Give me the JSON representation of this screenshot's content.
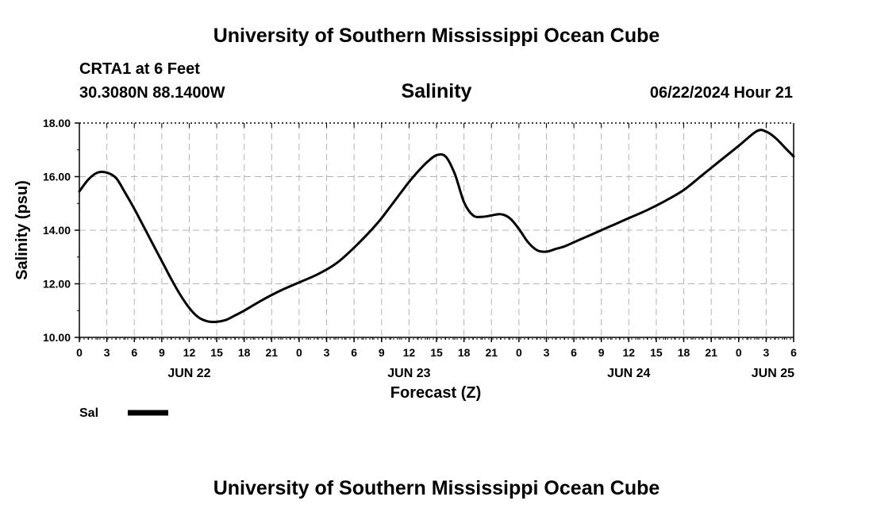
{
  "header": {
    "title": "University of Southern Mississippi Ocean Cube",
    "station": "CRTA1 at 6 Feet",
    "coordinates": "30.3080N  88.1400W",
    "variable": "Salinity",
    "timestamp": "06/22/2024 Hour 21"
  },
  "footer": {
    "title": "University of Southern Mississippi Ocean Cube"
  },
  "chart_data": {
    "type": "line",
    "title": "Salinity",
    "xlabel": "Forecast (Z)",
    "ylabel": "Salinity (psu)",
    "ylim": [
      10,
      18
    ],
    "xlim": [
      0,
      78
    ],
    "y_ticks": [
      "10.00",
      "12.00",
      "14.00",
      "16.00",
      "18.00"
    ],
    "y_tick_values": [
      10,
      12,
      14,
      16,
      18
    ],
    "x_ticks": [
      0,
      3,
      6,
      9,
      12,
      15,
      18,
      21,
      24,
      27,
      30,
      33,
      36,
      39,
      42,
      45,
      48,
      51,
      54,
      57,
      60,
      63,
      66,
      69,
      72,
      75,
      78
    ],
    "x_tick_labels": [
      "0",
      "3",
      "6",
      "9",
      "12",
      "15",
      "18",
      "21",
      "0",
      "3",
      "6",
      "9",
      "12",
      "15",
      "18",
      "21",
      "0",
      "3",
      "6",
      "9",
      "12",
      "15",
      "18",
      "21",
      "0",
      "3",
      "6"
    ],
    "date_labels": [
      {
        "label": "JUN 22",
        "at": 12
      },
      {
        "label": "JUN 23",
        "at": 36
      },
      {
        "label": "JUN 24",
        "at": 60
      },
      {
        "label": "JUN 25",
        "at": 78
      }
    ],
    "grid": true,
    "series": [
      {
        "name": "Sal",
        "x": [
          0,
          1,
          2,
          3,
          4,
          5,
          6,
          7,
          8,
          9,
          10,
          11,
          12,
          13,
          14,
          15,
          16,
          17,
          18,
          20,
          22,
          24,
          26,
          28,
          30,
          32,
          33,
          34,
          35,
          36,
          37,
          38,
          39,
          40,
          41,
          42,
          43,
          44,
          45,
          46,
          47,
          48,
          49,
          50,
          51,
          52,
          53,
          54,
          55,
          56,
          57,
          58,
          59,
          60,
          62,
          64,
          66,
          68,
          70,
          72,
          74,
          75,
          76,
          77,
          78
        ],
        "values": [
          15.45,
          15.9,
          16.15,
          16.15,
          15.95,
          15.4,
          14.8,
          14.15,
          13.5,
          12.85,
          12.2,
          11.6,
          11.1,
          10.75,
          10.6,
          10.58,
          10.65,
          10.82,
          11.0,
          11.4,
          11.75,
          12.05,
          12.35,
          12.75,
          13.35,
          14.05,
          14.45,
          14.9,
          15.35,
          15.8,
          16.2,
          16.55,
          16.8,
          16.75,
          16.1,
          15.05,
          14.55,
          14.5,
          14.55,
          14.6,
          14.45,
          14.05,
          13.55,
          13.25,
          13.2,
          13.3,
          13.4,
          13.55,
          13.7,
          13.85,
          14.0,
          14.15,
          14.3,
          14.45,
          14.75,
          15.1,
          15.5,
          16.05,
          16.6,
          17.15,
          17.7,
          17.68,
          17.45,
          17.1,
          16.75
        ]
      }
    ],
    "legend": {
      "entries": [
        "Sal"
      ],
      "position": "bottom-left"
    }
  }
}
